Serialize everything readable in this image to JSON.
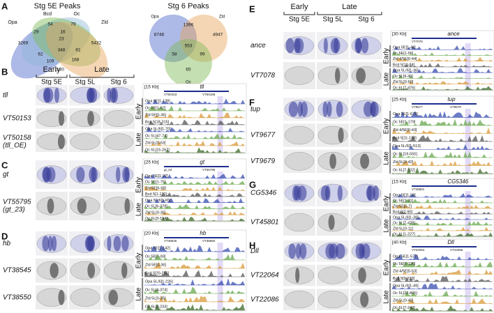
{
  "panelA": {
    "label": "A",
    "venn1": {
      "title": "Stg 5E Peaks",
      "sets": [
        "Opa",
        "Bcd",
        "Oc",
        "Zld"
      ],
      "numbers": [
        "54",
        "79",
        "29",
        "16",
        "3269",
        "23",
        "5432",
        "348",
        "61",
        "62",
        "168",
        "109",
        "1130"
      ]
    },
    "venn2": {
      "title": "Stg 6 Peaks",
      "sets": [
        "Opa",
        "Zld",
        "Oc"
      ],
      "numbers": [
        "1396",
        "8746",
        "4947",
        "553",
        "58",
        "99",
        "65"
      ]
    }
  },
  "panels": [
    {
      "label": "B",
      "header": {
        "early": "Early",
        "late": "Late",
        "stages": [
          "Stg 5E",
          "Stg 5L",
          "Stg 6"
        ]
      },
      "rows": [
        [
          "tll"
        ],
        [
          "VT50153"
        ],
        [
          "VT50158",
          "(tll_OE)"
        ]
      ],
      "tracks": {
        "scale": "[15 Kb]",
        "gene": "tll",
        "extras": [
          "VT50153",
          "VT50158"
        ],
        "groups": [
          "Early",
          "Late"
        ],
        "early": [
          "Opa 5E[1-138]",
          "Oc 5E[1-52]",
          "Zld 5E[0-36]",
          "Bcd 5[18-315]"
        ],
        "late": [
          "Opa 5L/6[1-70]",
          "Oc 5L[47-74]",
          "Zld 6L[0-63]",
          "Oc 6L[15-267]"
        ]
      }
    },
    {
      "label": "C",
      "rows": [
        [
          "gt"
        ],
        [
          "VT55795",
          "(gt_23)"
        ]
      ],
      "tracks": {
        "scale": "[25 Kb]",
        "gene": "gt",
        "extras": [
          "gt_23",
          "VT55795"
        ],
        "groups": [
          "Early",
          "Late"
        ],
        "early": [
          "Opa 5E[1-97]",
          "Oc 5E[1-75]",
          "Zld 5E[6-58]",
          "Bcd 5[1-171]"
        ],
        "late": [
          "Opa 5L/6[1-65]",
          "Oc 5L[6-378]",
          "Zld 5L[0-35]",
          "Oc 6L[3-194]"
        ]
      }
    },
    {
      "label": "D",
      "rows": [
        [
          "hb"
        ],
        [
          "VT38545"
        ],
        [
          "VT38550"
        ]
      ],
      "tracks": {
        "scale": "[20 Kb]",
        "gene": "hb",
        "extras": [
          "VT38545",
          "VT38550"
        ],
        "groups": [
          "Early",
          "Late"
        ],
        "early": [
          "Opa 5E[1-142]",
          "Oc 5E[7-93]",
          "Zld 5E[0-36]",
          "Bcd 5[20-255]"
        ],
        "late": [
          "Opa 5L/6[1-226]",
          "Oc 5L[4-374]",
          "Zld 5L[0-35]",
          "Oc 6L[3-233]"
        ]
      }
    },
    {
      "label": "E",
      "header": {
        "early": "Early",
        "late": "Late",
        "stages": [
          "Stg 5E",
          "Stg 5L",
          "Stg 6"
        ]
      },
      "rows": [
        [
          "ance"
        ],
        [
          "VT7078"
        ]
      ],
      "tracks": {
        "scale": "[30 Kb]",
        "gene": "ance",
        "extras": [
          "VT7078"
        ],
        "groups": [
          "Early",
          "Late"
        ],
        "early": [
          "Opa 5E[1-48]",
          "Oc 5E[1-56]",
          "Zld 4/5E[0-44]",
          "Bcd 5[10-84]"
        ],
        "late": [
          "Opa 5L/6[1-36]",
          "Oc 5L[9-30]",
          "Zld 5L[0-60]",
          "Oc 6L[7-476]"
        ]
      }
    },
    {
      "label": "F",
      "rows": [
        [
          "tup"
        ],
        [
          "VT9677"
        ],
        [
          "VT9679"
        ]
      ],
      "tracks": {
        "scale": "[25 Kb]",
        "gene": "tup",
        "extras": [
          "VT9677",
          "VT9679"
        ],
        "groups": [
          "Early",
          "Late"
        ],
        "early": [
          "Opa 5E[1-679]",
          "Oc 5E[1-179]",
          "Zld 4/5E[0-43]",
          "Bcd 5[11-198]"
        ],
        "late": [
          "Opa 5L/6[1-513]",
          "Oc 5L[19-555]",
          "Zld 5L[0-42]",
          "Oc 6L[7-232]"
        ]
      }
    },
    {
      "label": "G",
      "rows": [
        [
          "CG5346"
        ],
        [
          "VT45801"
        ]
      ],
      "tracks": {
        "scale": "[15 Kb]",
        "gene": "CG5346",
        "extras": [
          "VT45801"
        ],
        "groups": [
          "Early",
          "Late"
        ],
        "early": [
          "Opa 5E[1-59]",
          "Oc 5E[1-31]",
          "Zld 5E[0-7]",
          "Bcd 5[2-90]"
        ],
        "late": [
          "Opa 5L/6[1-38]",
          "Oc 5L[7-478]",
          "Zld 5L[0-11]",
          "Oc 6L[1-227]"
        ]
      }
    },
    {
      "label": "H",
      "rows": [
        [
          "Dll"
        ],
        [
          "VT22064"
        ],
        [
          "VT22086"
        ]
      ],
      "tracks": {
        "scale": "[40 Kb]",
        "gene": "Dll",
        "extras": [
          "VT22064",
          "VT22086"
        ],
        "groups": [
          "Early",
          "Late"
        ],
        "early": [
          "Opa 5E[1-577]",
          "Oc 5E[6-126]",
          "Zld 4/5E[0-53]",
          "Bcd 5[9-223]"
        ],
        "late": [
          "Opa 5L/6[1-49]",
          "Oc 5L[22-865]",
          "Zld 5L[0-40]",
          "Oc 6L[7-243]"
        ]
      }
    }
  ]
}
